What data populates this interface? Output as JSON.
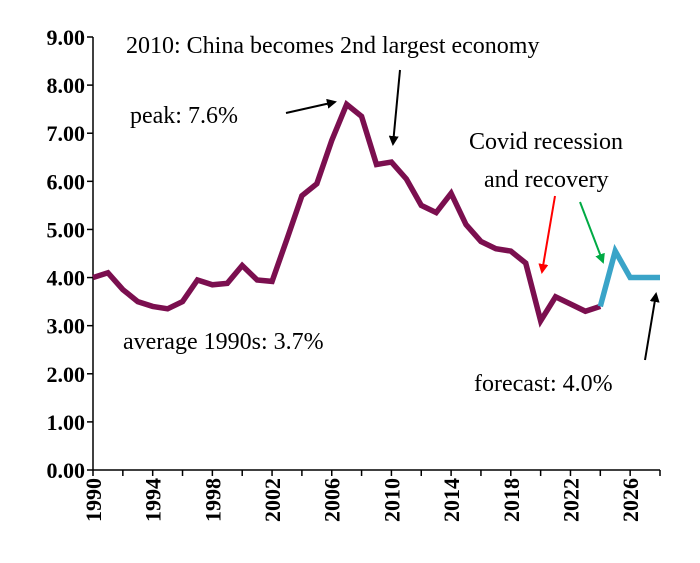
{
  "chart_data": {
    "type": "line",
    "title": "",
    "xlabel": "",
    "ylabel": "",
    "xlim": [
      1990,
      2028
    ],
    "ylim": [
      0,
      9
    ],
    "grid": false,
    "legend": "none",
    "y_ticks": [
      "0.00",
      "1.00",
      "2.00",
      "3.00",
      "4.00",
      "5.00",
      "6.00",
      "7.00",
      "8.00",
      "9.00"
    ],
    "y_tick_values": [
      0,
      1,
      2,
      3,
      4,
      5,
      6,
      7,
      8,
      9
    ],
    "x_ticks": [
      "1990",
      "1994",
      "1998",
      "2002",
      "2006",
      "2010",
      "2014",
      "2018",
      "2022",
      "2026"
    ],
    "x_tick_values": [
      1990,
      1994,
      1998,
      2002,
      2006,
      2010,
      2014,
      2018,
      2022,
      2026
    ],
    "series": [
      {
        "color": "#7b0f4f",
        "x": [
          1990,
          1991,
          1992,
          1993,
          1994,
          1995,
          1996,
          1997,
          1998,
          1999,
          2000,
          2001,
          2002,
          2003,
          2004,
          2005,
          2006,
          2007,
          2008,
          2009,
          2010,
          2011,
          2012,
          2013,
          2014,
          2015,
          2016,
          2017,
          2018,
          2019,
          2020,
          2021,
          2022,
          2023,
          2024
        ],
        "y": [
          4.0,
          4.1,
          3.75,
          3.5,
          3.4,
          3.35,
          3.5,
          3.95,
          3.85,
          3.88,
          4.25,
          3.95,
          3.92,
          4.8,
          5.7,
          5.95,
          6.85,
          7.6,
          7.35,
          6.35,
          6.4,
          6.05,
          5.5,
          5.35,
          5.75,
          5.1,
          4.75,
          4.6,
          4.55,
          4.3,
          3.1,
          3.6,
          3.45,
          3.3,
          3.4
        ]
      },
      {
        "color": "#3aa4c8",
        "x": [
          2024,
          2025,
          2026,
          2027,
          2028
        ],
        "y": [
          3.4,
          4.55,
          4.0,
          4.0,
          4.0
        ]
      }
    ],
    "annotations": [
      {
        "id": "china",
        "text": "2010:  China becomes 2nd largest economy"
      },
      {
        "id": "peak",
        "text": "peak: 7.6%"
      },
      {
        "id": "covid1",
        "text": "Covid recession"
      },
      {
        "id": "covid2",
        "text": "and recovery"
      },
      {
        "id": "avg",
        "text": "average 1990s:  3.7%"
      },
      {
        "id": "forecast",
        "text": "forecast: 4.0%"
      }
    ],
    "arrow_colors": {
      "default": "#000000",
      "recession": "#ff0000",
      "recovery": "#00aa44"
    }
  }
}
